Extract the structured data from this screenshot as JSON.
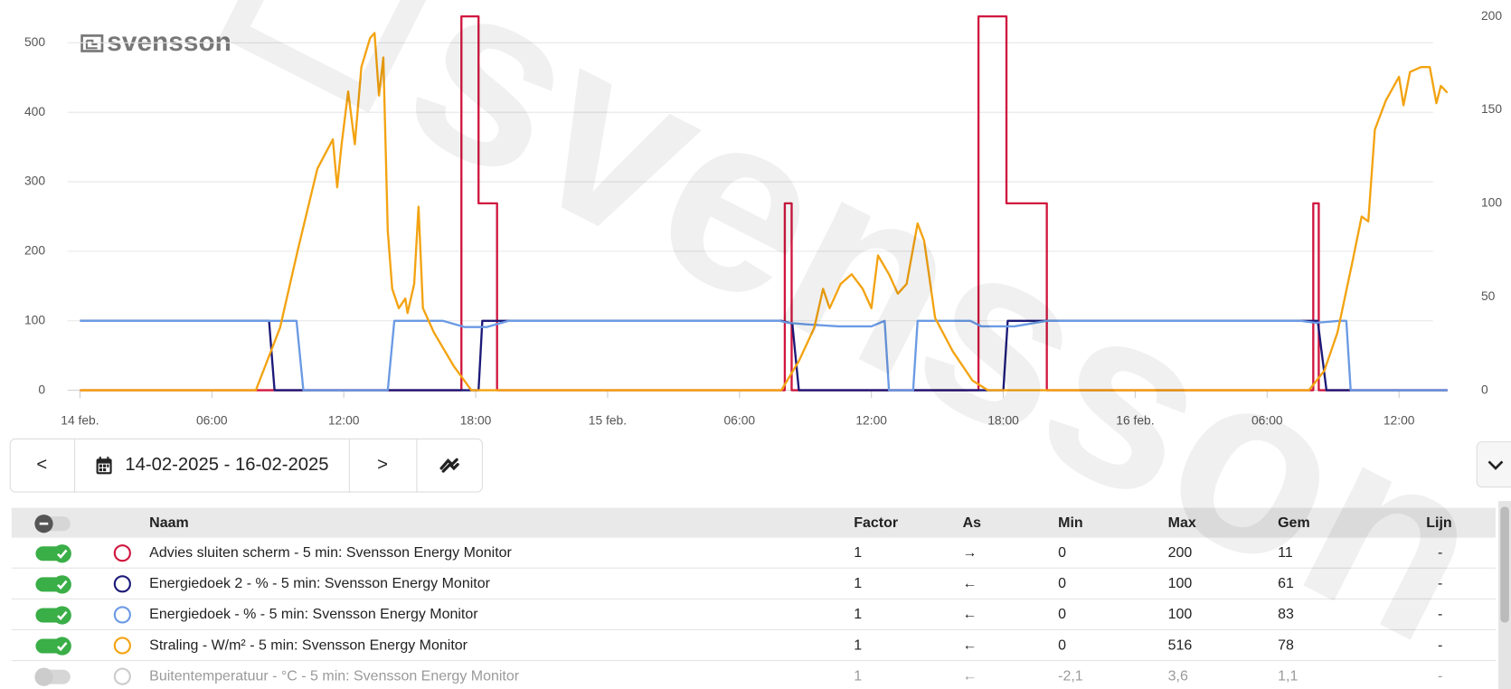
{
  "logo": "svensson",
  "chart_data": {
    "type": "line",
    "xlim": [
      0,
      62.2
    ],
    "xticks": [
      {
        "value": 0,
        "label": "14 feb."
      },
      {
        "value": 6,
        "label": "06:00"
      },
      {
        "value": 12,
        "label": "12:00"
      },
      {
        "value": 18,
        "label": "18:00"
      },
      {
        "value": 24,
        "label": "15 feb."
      },
      {
        "value": 30,
        "label": "06:00"
      },
      {
        "value": 36,
        "label": "12:00"
      },
      {
        "value": 42,
        "label": "18:00"
      },
      {
        "value": 48,
        "label": "16 feb."
      },
      {
        "value": 54,
        "label": "06:00"
      },
      {
        "value": 60,
        "label": "12:00"
      }
    ],
    "ylim": [
      0,
      538
    ],
    "yticks": [
      0,
      100,
      200,
      300,
      400,
      500
    ],
    "y2lim": [
      0,
      200
    ],
    "y2ticks": [
      0,
      50,
      100,
      150,
      200
    ],
    "grid": true,
    "series": [
      {
        "color": "#d0173f",
        "axis": "y2",
        "x": [
          0,
          17.35,
          17.35,
          18.13,
          18.13,
          18.97,
          18.97,
          32.06,
          32.06,
          32.37,
          32.37,
          40.87,
          40.87,
          42.14,
          42.14,
          43.98,
          43.98,
          56.1,
          56.1,
          56.35,
          56.35,
          62.2
        ],
        "values": [
          0,
          0,
          200,
          200,
          100,
          100,
          0,
          0,
          100,
          100,
          0,
          0,
          200,
          200,
          100,
          100,
          0,
          0,
          100,
          100,
          0,
          0
        ]
      },
      {
        "color": "#1c1a78",
        "axis": "y",
        "x": [
          0,
          8.6,
          8.85,
          18.13,
          18.3,
          31.9,
          32.4,
          32.7,
          42.0,
          42.2,
          56.3,
          56.7,
          62.2
        ],
        "values": [
          100,
          100,
          0,
          0,
          100,
          100,
          96,
          0,
          0,
          100,
          100,
          0,
          0
        ]
      },
      {
        "color": "#6b9ae4",
        "axis": "y",
        "x": [
          0,
          9.85,
          10.16,
          14.0,
          14.3,
          16.5,
          17.5,
          18.5,
          19.5,
          31.8,
          32.2,
          33.0,
          34.5,
          36.0,
          36.6,
          36.8,
          37.9,
          38.1,
          40.5,
          41.0,
          42.5,
          44.0,
          55.5,
          56.2,
          57.3,
          57.6,
          57.8,
          62.2
        ],
        "values": [
          100,
          100,
          0,
          0,
          100,
          100,
          91,
          91,
          100,
          100,
          97,
          95,
          92,
          92,
          100,
          0,
          0,
          100,
          100,
          92,
          92,
          100,
          100,
          97,
          100,
          100,
          0,
          0
        ]
      },
      {
        "color": "#f3a311",
        "axis": "y",
        "x": [
          0,
          8.0,
          9.1,
          9.9,
          10.8,
          11.5,
          11.7,
          11.9,
          12.2,
          12.5,
          12.8,
          13.2,
          13.4,
          13.6,
          13.8,
          14.0,
          14.2,
          14.5,
          14.8,
          14.9,
          15.2,
          15.4,
          15.6,
          16.1,
          17.0,
          17.8,
          31.9,
          32.7,
          33.4,
          33.8,
          34.1,
          34.6,
          35.1,
          35.6,
          36.0,
          36.3,
          36.8,
          37.2,
          37.6,
          38.1,
          38.4,
          38.9,
          39.7,
          40.6,
          41.3,
          55.9,
          56.6,
          57.2,
          57.9,
          58.3,
          58.6,
          58.9,
          59.4,
          60.0,
          60.2,
          60.5,
          61.0,
          61.4,
          61.7,
          61.9,
          62.2
        ],
        "values": [
          0,
          0,
          90,
          201,
          319,
          361,
          292,
          354,
          430,
          354,
          465,
          507,
          514,
          424,
          479,
          229,
          146,
          118,
          132,
          111,
          153,
          264,
          118,
          83,
          35,
          0,
          0,
          42,
          90,
          146,
          118,
          153,
          167,
          146,
          118,
          194,
          167,
          139,
          153,
          240,
          215,
          104,
          56,
          14,
          0,
          0,
          28,
          83,
          188,
          250,
          243,
          375,
          417,
          451,
          410,
          458,
          465,
          465,
          413,
          438,
          428
        ]
      }
    ]
  },
  "controls": {
    "date_range": "14-02-2025 - 16-02-2025",
    "prev": "<",
    "next": ">"
  },
  "table": {
    "columns": [
      "Naam",
      "Factor",
      "As",
      "Min",
      "Max",
      "Gem",
      "Lijn"
    ],
    "rows": [
      {
        "enabled": true,
        "color": "#d0173f",
        "cells": [
          "Advies sluiten scherm - 5 min: Svensson Energy Monitor",
          "1",
          "→",
          "0",
          "200",
          "11",
          "-"
        ]
      },
      {
        "enabled": true,
        "color": "#1c1a78",
        "cells": [
          "Energiedoek 2 - % - 5 min: Svensson Energy Monitor",
          "1",
          "←",
          "0",
          "100",
          "61",
          "-"
        ]
      },
      {
        "enabled": true,
        "color": "#6b9ae4",
        "cells": [
          "Energiedoek - % - 5 min: Svensson Energy Monitor",
          "1",
          "←",
          "0",
          "100",
          "83",
          "-"
        ]
      },
      {
        "enabled": true,
        "color": "#f3a311",
        "cells": [
          "Straling - W/m² - 5 min: Svensson Energy Monitor",
          "1",
          "←",
          "0",
          "516",
          "78",
          "-"
        ]
      },
      {
        "enabled": false,
        "color": "#cccccc",
        "cells": [
          "Buitentemperatuur - °C - 5 min: Svensson Energy Monitor",
          "1",
          "←",
          "-2,1",
          "3,6",
          "1,1",
          "-"
        ]
      }
    ]
  }
}
